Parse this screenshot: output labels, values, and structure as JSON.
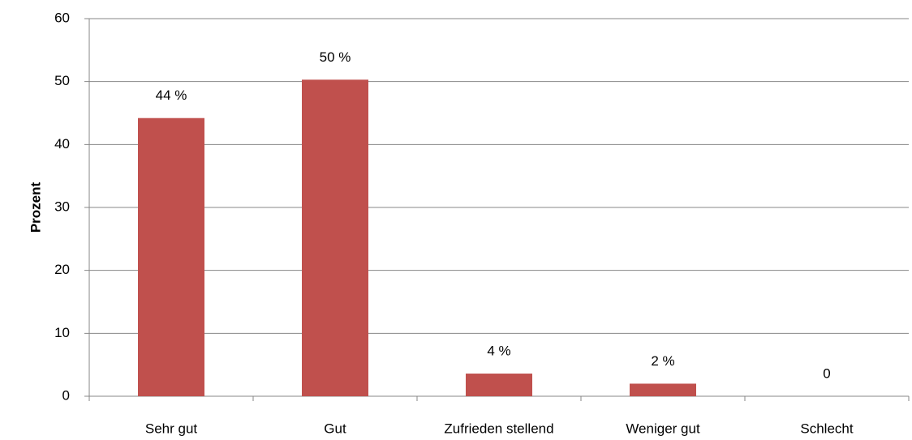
{
  "chart_data": {
    "type": "bar",
    "y_label": "Prozent",
    "categories": [
      "Sehr gut",
      "Gut",
      "Zufrieden stellend",
      "Weniger gut",
      "Schlecht"
    ],
    "values": [
      44.2,
      50.3,
      3.6,
      2,
      0
    ],
    "value_labels": [
      "44 %",
      "50 %",
      "4 %",
      "2 %",
      "0"
    ],
    "color": "#c0504d",
    "ylim": [
      0,
      60
    ],
    "yticks": [
      0,
      10,
      20,
      30,
      40,
      50,
      60
    ],
    "grid": true
  }
}
